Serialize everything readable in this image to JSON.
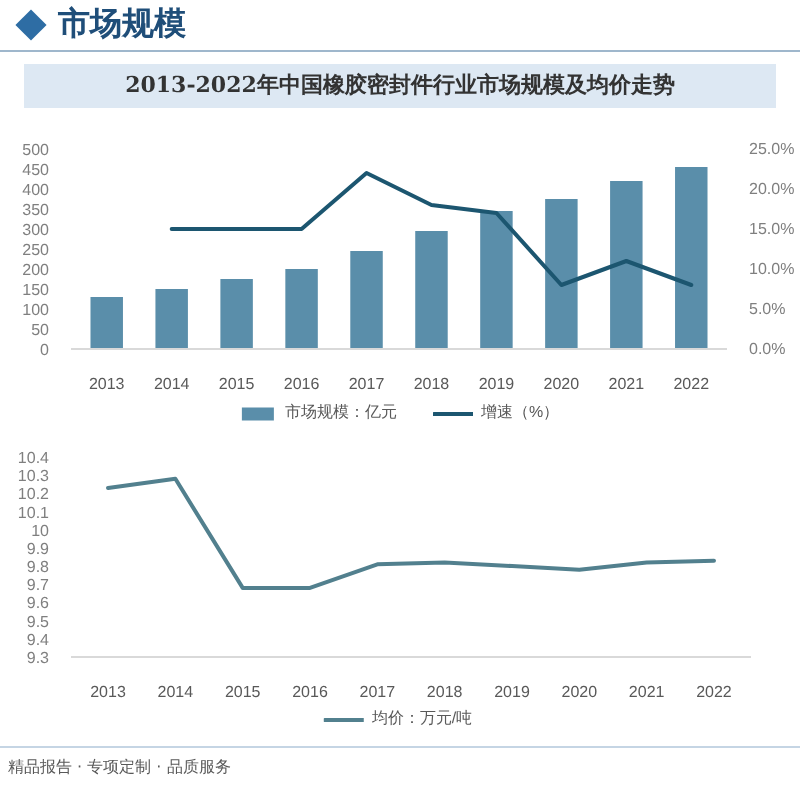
{
  "chart_data": [
    {
      "type": "bar",
      "title": "2013-2022年中国橡胶密封件行业市场规模及均价走势",
      "annotations": [
        "市场规模"
      ],
      "categories": [
        "2013",
        "2014",
        "2015",
        "2016",
        "2017",
        "2018",
        "2019",
        "2020",
        "2021",
        "2022"
      ],
      "series": [
        {
          "name": "市场规模：亿元",
          "color": "#5a8eaa",
          "values": [
            130,
            150,
            175,
            200,
            245,
            295,
            345,
            375,
            420,
            455
          ]
        },
        {
          "name": "增速（%）",
          "type": "line",
          "axis": "y2",
          "color": "#1c5670",
          "values": [
            null,
            15,
            15,
            15,
            22,
            18,
            17,
            8,
            11,
            8
          ]
        }
      ],
      "ylim": [
        0,
        500
      ],
      "yticks": [
        0,
        50,
        100,
        150,
        200,
        250,
        300,
        350,
        400,
        450,
        500
      ],
      "y2lim": [
        0,
        25
      ],
      "y2ticks": [
        {
          "value": 0,
          "label": "0.0%"
        },
        {
          "value": 5,
          "label": "5.0%"
        },
        {
          "value": 10,
          "label": "10.0%"
        },
        {
          "value": 15,
          "label": "15.0%"
        },
        {
          "value": 20,
          "label": "20.0%"
        },
        {
          "value": 25,
          "label": "25.0%"
        }
      ],
      "legend": "bottom"
    },
    {
      "type": "line",
      "annotations": [
        "精品报告 · 专项定制 · 品质服务"
      ],
      "categories": [
        "2013",
        "2014",
        "2015",
        "2016",
        "2017",
        "2018",
        "2019",
        "2020",
        "2021",
        "2022"
      ],
      "series": [
        {
          "name": "均价：万元/吨",
          "color": "#52808e",
          "values": [
            10.23,
            10.28,
            9.68,
            9.68,
            9.81,
            9.82,
            9.8,
            9.78,
            9.82,
            9.83
          ]
        }
      ],
      "ylim": [
        9.3,
        10.4
      ],
      "yticks": [
        9.3,
        9.4,
        9.5,
        9.6,
        9.7,
        9.8,
        9.9,
        10,
        10.1,
        10.2,
        10.3,
        10.4
      ],
      "legend": "bottom"
    }
  ]
}
